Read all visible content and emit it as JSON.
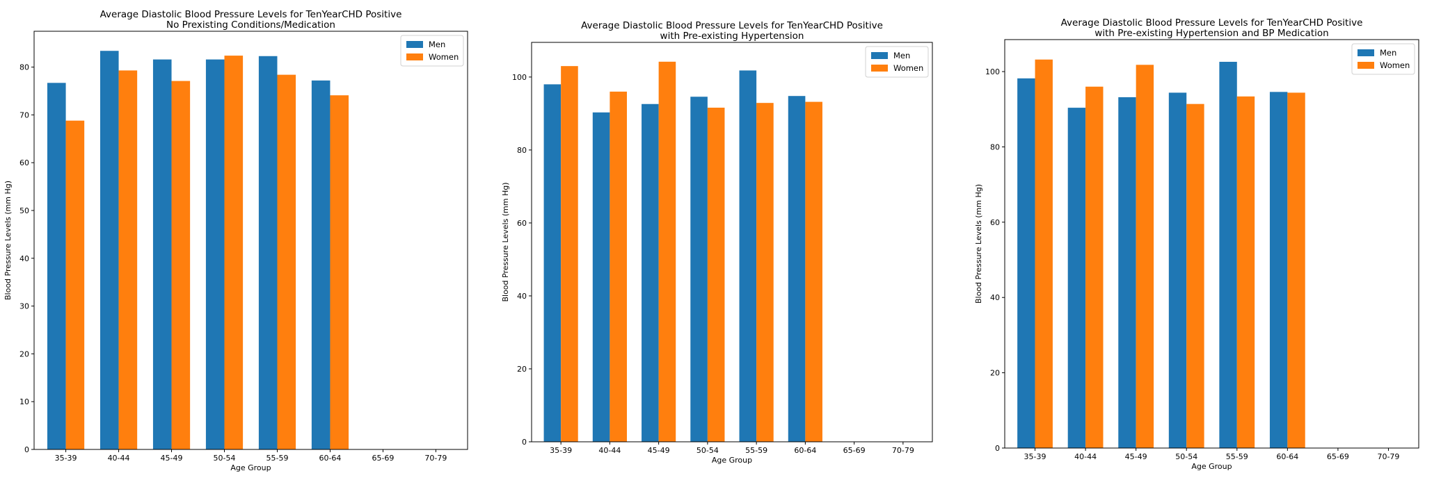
{
  "colors": {
    "men": "#1f77b4",
    "women": "#ff7f0e"
  },
  "chart_data": [
    {
      "type": "bar",
      "title": "Average Diastolic Blood Pressure Levels for TenYearCHD Positive",
      "subtitle": "No Prexisting Conditions/Medication",
      "xlabel": "Age Group",
      "ylabel": "Blood Pressure Levels (mm Hg)",
      "categories": [
        "35-39",
        "40-44",
        "45-49",
        "50-54",
        "55-59",
        "60-64",
        "65-69",
        "70-79"
      ],
      "ylim": [
        0,
        87.5
      ],
      "yticks": [
        0,
        10,
        20,
        30,
        40,
        50,
        60,
        70,
        80
      ],
      "legend": "top-right",
      "series": [
        {
          "name": "Men",
          "values": [
            76.7,
            83.4,
            81.6,
            81.6,
            82.3,
            77.2,
            null,
            null
          ]
        },
        {
          "name": "Women",
          "values": [
            68.8,
            79.3,
            77.1,
            82.4,
            78.4,
            74.1,
            null,
            null
          ]
        }
      ]
    },
    {
      "type": "bar",
      "title": "Average Diastolic Blood Pressure Levels for TenYearCHD Positive",
      "subtitle": "with Pre-existing Hypertension",
      "xlabel": "Age Group",
      "ylabel": "Blood Pressure Levels (mm Hg)",
      "categories": [
        "35-39",
        "40-44",
        "45-49",
        "50-54",
        "55-59",
        "60-64",
        "65-69",
        "70-79"
      ],
      "ylim": [
        0,
        109.5
      ],
      "yticks": [
        0,
        20,
        40,
        60,
        80,
        100
      ],
      "legend": "top-right",
      "series": [
        {
          "name": "Men",
          "values": [
            98.0,
            90.3,
            92.6,
            94.6,
            101.8,
            94.8,
            null,
            null
          ]
        },
        {
          "name": "Women",
          "values": [
            103.0,
            96.0,
            104.2,
            91.6,
            92.9,
            93.2,
            null,
            null
          ]
        }
      ]
    },
    {
      "type": "bar",
      "title": "Average Diastolic Blood Pressure Levels for TenYearCHD Positive",
      "subtitle": "with Pre-existing Hypertension and BP Medication",
      "xlabel": "Age Group",
      "ylabel": "Blood Pressure Levels (mm Hg)",
      "categories": [
        "35-39",
        "40-44",
        "45-49",
        "50-54",
        "55-59",
        "60-64",
        "65-69",
        "70-79"
      ],
      "ylim": [
        0,
        108.5
      ],
      "yticks": [
        0,
        20,
        40,
        60,
        80,
        100
      ],
      "legend": "top-right",
      "series": [
        {
          "name": "Men",
          "values": [
            98.2,
            90.4,
            93.2,
            94.4,
            102.6,
            94.6,
            null,
            null
          ]
        },
        {
          "name": "Women",
          "values": [
            103.2,
            96.0,
            101.8,
            91.4,
            93.4,
            94.4,
            null,
            null
          ]
        }
      ]
    }
  ]
}
